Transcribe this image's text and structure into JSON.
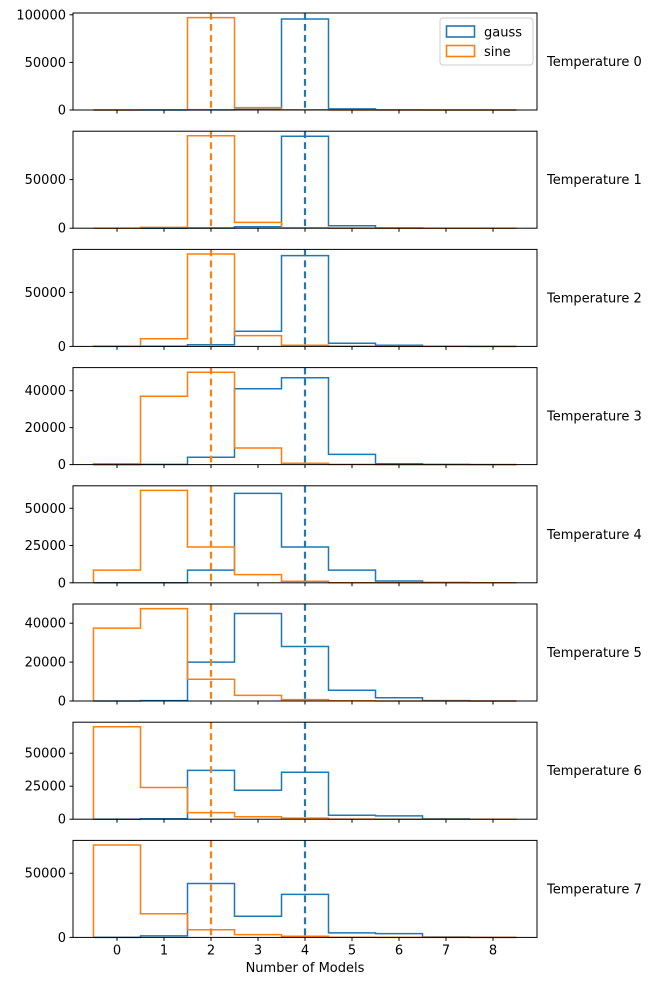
{
  "figure": {
    "xlabel": "Number of Models",
    "x_tick_labels": [
      "0",
      "1",
      "2",
      "3",
      "4",
      "5",
      "6",
      "7",
      "8"
    ],
    "colors": {
      "gauss": "#1f77b4",
      "sine": "#ff7f0e",
      "spine": "#000000",
      "legend_border": "#cccccc"
    },
    "legend": {
      "entries": [
        {
          "label": "gauss",
          "color": "#1f77b4"
        },
        {
          "label": "sine",
          "color": "#ff7f0e"
        }
      ]
    },
    "vlines": [
      {
        "x": 2,
        "color": "#ff7f0e",
        "style": "dashed"
      },
      {
        "x": 4,
        "color": "#1f77b4",
        "style": "dashed"
      }
    ]
  },
  "chart_data": [
    {
      "type": "bar",
      "subtype": "step-histogram",
      "title": "Temperature 0",
      "bin_centers": [
        0,
        1,
        2,
        3,
        4,
        5,
        6,
        7,
        8
      ],
      "bin_edges": [
        -0.5,
        0.5,
        1.5,
        2.5,
        3.5,
        4.5,
        5.5,
        6.5,
        7.5,
        8.5
      ],
      "series": [
        {
          "name": "gauss",
          "values": [
            0,
            0,
            100,
            600,
            95500,
            1200,
            100,
            0,
            0
          ]
        },
        {
          "name": "sine",
          "values": [
            0,
            200,
            97000,
            2500,
            300,
            0,
            0,
            0,
            0
          ]
        }
      ],
      "y_ticks": [
        0,
        50000,
        100000
      ],
      "y_tick_labels": [
        "0",
        "50000",
        "100000"
      ],
      "ylim": [
        0,
        101850
      ]
    },
    {
      "type": "bar",
      "subtype": "step-histogram",
      "title": "Temperature 1",
      "bin_centers": [
        0,
        1,
        2,
        3,
        4,
        5,
        6,
        7,
        8
      ],
      "bin_edges": [
        -0.5,
        0.5,
        1.5,
        2.5,
        3.5,
        4.5,
        5.5,
        6.5,
        7.5,
        8.5
      ],
      "series": [
        {
          "name": "gauss",
          "values": [
            0,
            0,
            200,
            1500,
            94500,
            2500,
            200,
            0,
            0
          ]
        },
        {
          "name": "sine",
          "values": [
            0,
            800,
            95000,
            6000,
            500,
            100,
            0,
            0,
            0
          ]
        }
      ],
      "y_ticks": [
        0,
        50000
      ],
      "y_tick_labels": [
        "0",
        "50000"
      ],
      "ylim": [
        0,
        99750
      ]
    },
    {
      "type": "bar",
      "subtype": "step-histogram",
      "title": "Temperature 2",
      "bin_centers": [
        0,
        1,
        2,
        3,
        4,
        5,
        6,
        7,
        8
      ],
      "bin_edges": [
        -0.5,
        0.5,
        1.5,
        2.5,
        3.5,
        4.5,
        5.5,
        6.5,
        7.5,
        8.5
      ],
      "series": [
        {
          "name": "gauss",
          "values": [
            0,
            100,
            1500,
            14000,
            84000,
            3000,
            1000,
            100,
            0
          ]
        },
        {
          "name": "sine",
          "values": [
            300,
            7000,
            85500,
            10000,
            1000,
            100,
            0,
            0,
            0
          ]
        }
      ],
      "y_ticks": [
        0,
        50000
      ],
      "y_tick_labels": [
        "0",
        "50000"
      ],
      "ylim": [
        0,
        89775
      ]
    },
    {
      "type": "bar",
      "subtype": "step-histogram",
      "title": "Temperature 3",
      "bin_centers": [
        0,
        1,
        2,
        3,
        4,
        5,
        6,
        7,
        8
      ],
      "bin_edges": [
        -0.5,
        0.5,
        1.5,
        2.5,
        3.5,
        4.5,
        5.5,
        6.5,
        7.5,
        8.5
      ],
      "series": [
        {
          "name": "gauss",
          "values": [
            0,
            100,
            4000,
            41000,
            47000,
            5500,
            500,
            100,
            0
          ]
        },
        {
          "name": "sine",
          "values": [
            500,
            37000,
            50000,
            9000,
            700,
            100,
            0,
            0,
            0
          ]
        }
      ],
      "y_ticks": [
        0,
        20000,
        40000
      ],
      "y_tick_labels": [
        "0",
        "20000",
        "40000"
      ],
      "ylim": [
        0,
        52500
      ]
    },
    {
      "type": "bar",
      "subtype": "step-histogram",
      "title": "Temperature 4",
      "bin_centers": [
        0,
        1,
        2,
        3,
        4,
        5,
        6,
        7,
        8
      ],
      "bin_edges": [
        -0.5,
        0.5,
        1.5,
        2.5,
        3.5,
        4.5,
        5.5,
        6.5,
        7.5,
        8.5
      ],
      "series": [
        {
          "name": "gauss",
          "values": [
            0,
            100,
            8500,
            60000,
            24000,
            8500,
            1200,
            200,
            0
          ]
        },
        {
          "name": "sine",
          "values": [
            8500,
            62000,
            24000,
            5500,
            1000,
            100,
            0,
            0,
            0
          ]
        }
      ],
      "y_ticks": [
        0,
        25000,
        50000
      ],
      "y_tick_labels": [
        "0",
        "25000",
        "50000"
      ],
      "ylim": [
        0,
        65100
      ]
    },
    {
      "type": "bar",
      "subtype": "step-histogram",
      "title": "Temperature 5",
      "bin_centers": [
        0,
        1,
        2,
        3,
        4,
        5,
        6,
        7,
        8
      ],
      "bin_edges": [
        -0.5,
        0.5,
        1.5,
        2.5,
        3.5,
        4.5,
        5.5,
        6.5,
        7.5,
        8.5
      ],
      "series": [
        {
          "name": "gauss",
          "values": [
            0,
            200,
            20000,
            45000,
            28000,
            5500,
            1700,
            200,
            0
          ]
        },
        {
          "name": "sine",
          "values": [
            37500,
            47500,
            11200,
            2900,
            700,
            100,
            0,
            0,
            0
          ]
        }
      ],
      "y_ticks": [
        0,
        20000,
        40000
      ],
      "y_tick_labels": [
        "0",
        "20000",
        "40000"
      ],
      "ylim": [
        0,
        49875
      ]
    },
    {
      "type": "bar",
      "subtype": "step-histogram",
      "title": "Temperature 6",
      "bin_centers": [
        0,
        1,
        2,
        3,
        4,
        5,
        6,
        7,
        8
      ],
      "bin_edges": [
        -0.5,
        0.5,
        1.5,
        2.5,
        3.5,
        4.5,
        5.5,
        6.5,
        7.5,
        8.5
      ],
      "series": [
        {
          "name": "gauss",
          "values": [
            0,
            300,
            37000,
            22000,
            35500,
            3000,
            2500,
            200,
            0
          ]
        },
        {
          "name": "sine",
          "values": [
            70000,
            24000,
            5000,
            1800,
            800,
            100,
            0,
            0,
            0
          ]
        }
      ],
      "y_ticks": [
        0,
        25000,
        50000
      ],
      "y_tick_labels": [
        "0",
        "25000",
        "50000"
      ],
      "ylim": [
        0,
        73500
      ]
    },
    {
      "type": "bar",
      "subtype": "step-histogram",
      "title": "Temperature 7",
      "bin_centers": [
        0,
        1,
        2,
        3,
        4,
        5,
        6,
        7,
        8
      ],
      "bin_edges": [
        -0.5,
        0.5,
        1.5,
        2.5,
        3.5,
        4.5,
        5.5,
        6.5,
        7.5,
        8.5
      ],
      "series": [
        {
          "name": "gauss",
          "values": [
            0,
            1200,
            42000,
            16500,
            33500,
            3500,
            3000,
            300,
            0
          ]
        },
        {
          "name": "sine",
          "values": [
            72000,
            18500,
            6000,
            2200,
            900,
            100,
            0,
            0,
            0
          ]
        }
      ],
      "y_ticks": [
        0,
        50000
      ],
      "y_tick_labels": [
        "0",
        "50000"
      ],
      "ylim": [
        0,
        75600
      ]
    }
  ]
}
